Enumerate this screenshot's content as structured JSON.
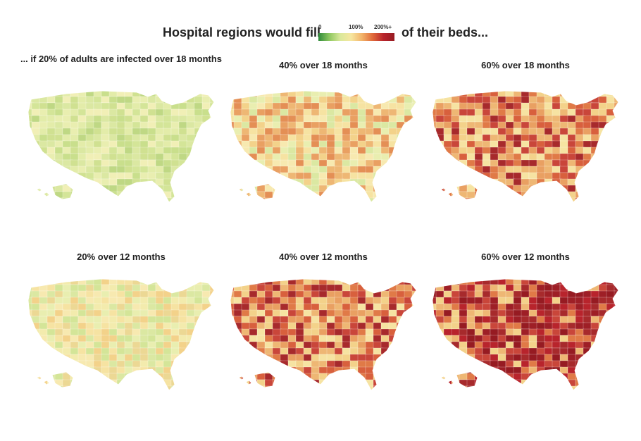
{
  "header": {
    "title_left": "Hospital regions would fill",
    "title_right": "of their beds...",
    "legend": {
      "ticks": [
        {
          "label": "0",
          "value": 0
        },
        {
          "label": "100%",
          "value": 100
        },
        {
          "label": "200%+",
          "value": 200
        }
      ],
      "colors": [
        "#2f8a3b",
        "#8ec760",
        "#d9e89a",
        "#f6e7a0",
        "#f2b46a",
        "#e0693a",
        "#b8242c",
        "#961b22"
      ]
    }
  },
  "panels": [
    {
      "caption": "... if 20% of adults are infected over 18 months",
      "infected_pct": 20,
      "months": 18,
      "palette": [
        "#c9df8c",
        "#d4e598",
        "#dbe8a2",
        "#e3eca9",
        "#e9eeb0",
        "#d0e191",
        "#bfd884",
        "#f1efb6"
      ]
    },
    {
      "caption": "40% over 18 months",
      "infected_pct": 40,
      "months": 18,
      "palette": [
        "#f6e3a2",
        "#f3d28a",
        "#eeb774",
        "#e9a062",
        "#e9eeb0",
        "#dbe8a2",
        "#f7e9b0",
        "#e48f55"
      ]
    },
    {
      "caption": "60% over 18 months",
      "infected_pct": 60,
      "months": 18,
      "palette": [
        "#e9a062",
        "#e07a47",
        "#c9463a",
        "#f3d28a",
        "#eeb774",
        "#f6e3a2",
        "#a72a2c",
        "#d8603d"
      ]
    },
    {
      "caption": "20% over 12 months",
      "infected_pct": 20,
      "months": 12,
      "palette": [
        "#f3ebad",
        "#f6e3a2",
        "#e9eeb0",
        "#dbe8a2",
        "#f7e9b0",
        "#f3d28a",
        "#ecd894",
        "#d4e598"
      ]
    },
    {
      "caption": "40% over 12 months",
      "infected_pct": 40,
      "months": 12,
      "palette": [
        "#eeb774",
        "#e9a062",
        "#e07a47",
        "#c9463a",
        "#f3d28a",
        "#a72a2c",
        "#f6e3a2",
        "#d8603d"
      ]
    },
    {
      "caption": "60% over 12 months",
      "infected_pct": 60,
      "months": 12,
      "palette": [
        "#a72a2c",
        "#961b22",
        "#b8242c",
        "#c9463a",
        "#e07a47",
        "#eeb774",
        "#f3d28a",
        "#9e1f26"
      ]
    }
  ]
}
